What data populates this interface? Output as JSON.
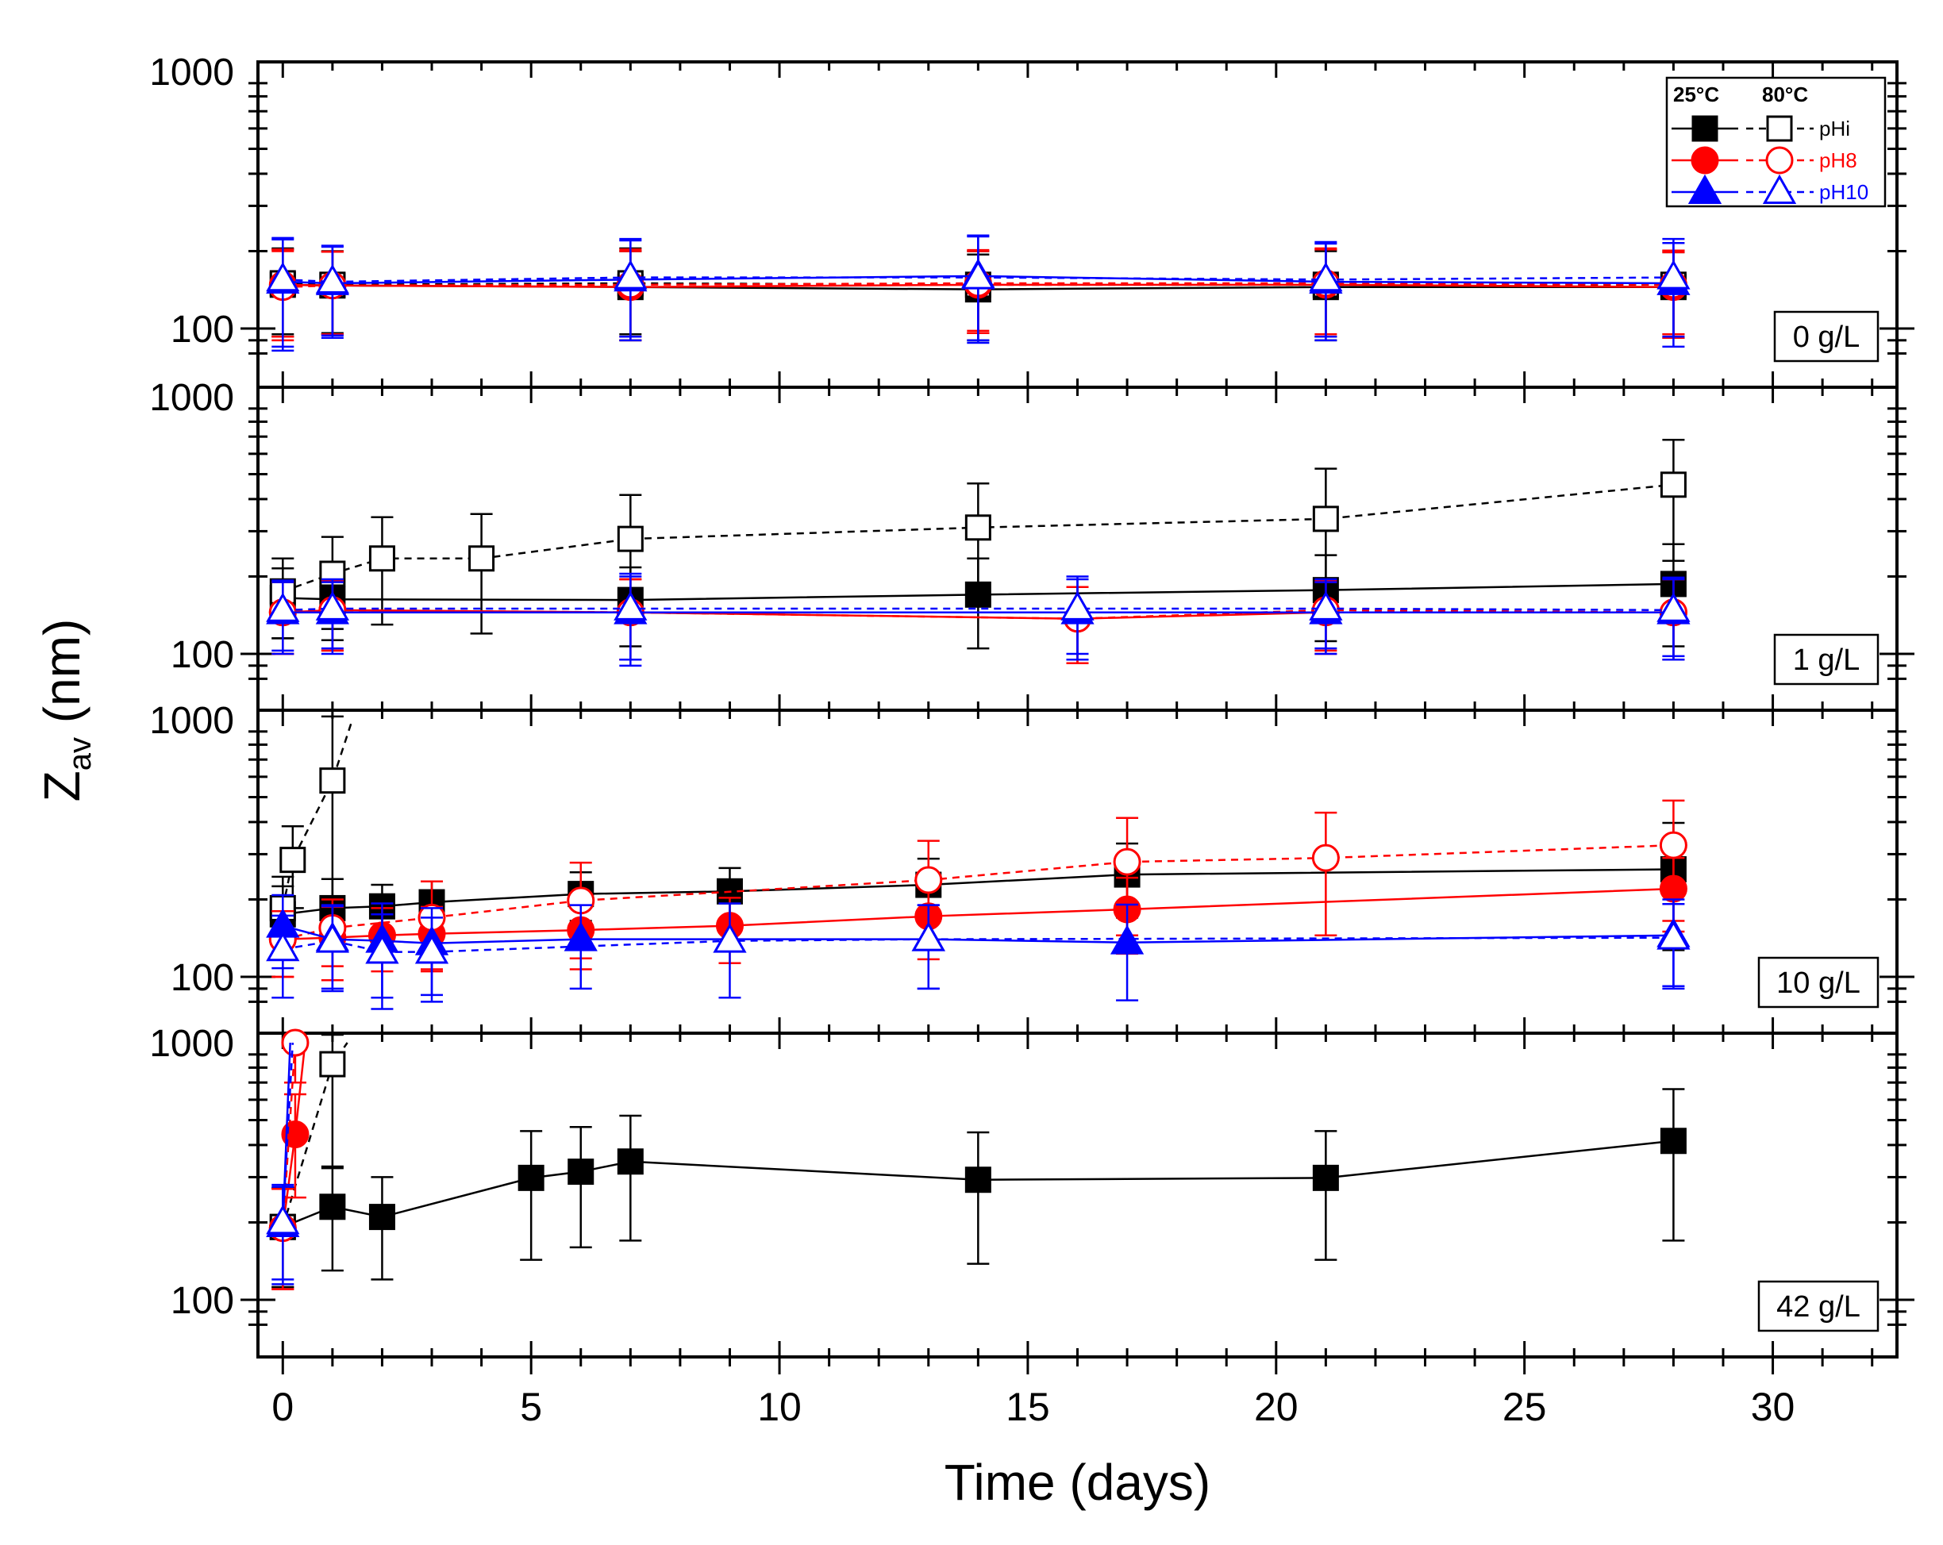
{
  "chart_data": {
    "type": "scatter",
    "xlabel": "Time (days)",
    "ylabel_main": "Z",
    "ylabel_sub": "av",
    "ylabel_unit": " (nm)",
    "x_ticks": [
      "0",
      "5",
      "10",
      "15",
      "20",
      "25",
      "30"
    ],
    "xlim": [
      -0.5,
      32.5
    ],
    "y_scale": "log",
    "ylim": [
      75,
      1000
    ],
    "y_ticks": [
      "100",
      "1000"
    ],
    "legend": {
      "placement": "top-right",
      "header_25": "25°C",
      "header_80": "80°C",
      "entries": [
        {
          "label": "pHi",
          "color": "#000000",
          "marker": "square"
        },
        {
          "label": "pH8",
          "color": "#ff0000",
          "marker": "circle"
        },
        {
          "label": "pH10",
          "color": "#0000ff",
          "marker": "triangle"
        }
      ]
    },
    "colors": {
      "pHi": "#000000",
      "pH8": "#ff0000",
      "pH10": "#0000ff"
    },
    "panels": [
      {
        "label": "0 g/L",
        "series": [
          {
            "key": "pHi",
            "temp": "25",
            "x": [
              0,
              1,
              7,
              14,
              21,
              28
            ],
            "y": [
              148,
              147,
              145,
              142,
              145,
              145
            ],
            "err": [
              55,
              52,
              55,
              52,
              55,
              53
            ]
          },
          {
            "key": "pHi",
            "temp": "80",
            "x": [
              0,
              1,
              7,
              14,
              21,
              28
            ],
            "y": [
              150,
              148,
              150,
              148,
              148,
              148
            ],
            "err": [
              55,
              52,
              55,
              52,
              55,
              53
            ]
          },
          {
            "key": "pH8",
            "temp": "25",
            "x": [
              0,
              1,
              7,
              14,
              21,
              28
            ],
            "y": [
              148,
              147,
              145,
              148,
              148,
              145
            ],
            "err": [
              55,
              52,
              55,
              52,
              55,
              53
            ]
          },
          {
            "key": "pH8",
            "temp": "80",
            "x": [
              0,
              1,
              7,
              14,
              21,
              28
            ],
            "y": [
              145,
              147,
              148,
              150,
              150,
              148
            ],
            "err": [
              55,
              52,
              55,
              52,
              55,
              53
            ]
          },
          {
            "key": "pH10",
            "temp": "25",
            "x": [
              0,
              1,
              7,
              14,
              21,
              28
            ],
            "y": [
              152,
              150,
              155,
              160,
              152,
              150
            ],
            "err": [
              70,
              58,
              65,
              70,
              62,
              65
            ]
          },
          {
            "key": "pH10",
            "temp": "80",
            "x": [
              0,
              1,
              7,
              14,
              21,
              28
            ],
            "y": [
              155,
              152,
              158,
              158,
              155,
              158
            ],
            "err": [
              70,
              58,
              65,
              70,
              62,
              65
            ]
          }
        ]
      },
      {
        "label": "1 g/L",
        "series": [
          {
            "key": "pHi",
            "temp": "25",
            "x": [
              0,
              1,
              7,
              14,
              21,
              28
            ],
            "y": [
              165,
              163,
              162,
              170,
              177,
              187
            ],
            "err": [
              50,
              50,
              55,
              65,
              65,
              80
            ]
          },
          {
            "key": "pHi",
            "temp": "80",
            "x": [
              0,
              1,
              2,
              4,
              7,
              14,
              21,
              28
            ],
            "y": [
              175,
              205,
              235,
              235,
              280,
              310,
              335,
              455
            ],
            "err": [
              60,
              80,
              105,
              115,
              135,
              150,
              190,
              225
            ]
          },
          {
            "key": "pH8",
            "temp": "25",
            "x": [
              0,
              1,
              7,
              16,
              21,
              28
            ],
            "y": [
              145,
              148,
              145,
              137,
              145,
              145
            ],
            "err": [
              45,
              45,
              50,
              45,
              45,
              50
            ]
          },
          {
            "key": "pH8",
            "temp": "80",
            "x": [
              0,
              1,
              7,
              16,
              21,
              28
            ],
            "y": [
              145,
              148,
              145,
              137,
              148,
              145
            ],
            "err": [
              45,
              45,
              50,
              45,
              45,
              50
            ]
          },
          {
            "key": "pH10",
            "temp": "25",
            "x": [
              0,
              1,
              7,
              16,
              21,
              28
            ],
            "y": [
              145,
              145,
              145,
              145,
              145,
              145
            ],
            "err": [
              45,
              45,
              55,
              50,
              45,
              50
            ]
          },
          {
            "key": "pH10",
            "temp": "80",
            "x": [
              0,
              1,
              7,
              16,
              21,
              28
            ],
            "y": [
              148,
              150,
              150,
              150,
              150,
              148
            ],
            "err": [
              45,
              45,
              55,
              50,
              45,
              50
            ]
          }
        ]
      },
      {
        "label": "10 g/L",
        "series": [
          {
            "key": "pHi",
            "temp": "25",
            "x": [
              0,
              1,
              2,
              3,
              6,
              9,
              13,
              17,
              28
            ],
            "y": [
              175,
              185,
              188,
              195,
              210,
              215,
              228,
              250,
              262
            ],
            "err": [
              50,
              55,
              40,
              40,
              45,
              50,
              60,
              80,
              135
            ]
          },
          {
            "key": "pHi",
            "temp": "80",
            "x": [
              0,
              0.2,
              1,
              1.4
            ],
            "y": [
              185,
              285,
              580,
              1000
            ],
            "err": [
              60,
              100,
              450,
              0
            ]
          },
          {
            "key": "pH8",
            "temp": "25",
            "x": [
              0,
              1,
              2,
              3,
              6,
              9,
              13,
              17,
              28
            ],
            "y": [
              140,
              142,
              145,
              147,
              152,
              158,
              172,
              183,
              220
            ],
            "err": [
              40,
              45,
              40,
              40,
              45,
              45,
              55,
              60,
              70
            ]
          },
          {
            "key": "pH8",
            "temp": "80",
            "x": [
              0,
              1,
              3,
              6,
              13,
              17,
              21,
              28
            ],
            "y": [
              140,
              155,
              170,
              198,
              238,
              280,
              290,
              325
            ],
            "err": [
              40,
              45,
              65,
              80,
              100,
              135,
              145,
              160
            ]
          },
          {
            "key": "pH10",
            "temp": "25",
            "x": [
              0,
              1,
              2,
              3,
              6,
              13,
              17,
              28
            ],
            "y": [
              158,
              140,
              138,
              135,
              140,
              140,
              136,
              145
            ],
            "err": [
              50,
              50,
              55,
              50,
              50,
              50,
              55,
              55
            ]
          },
          {
            "key": "pH10",
            "temp": "80",
            "x": [
              0,
              1,
              2,
              3,
              9,
              13,
              28
            ],
            "y": [
              128,
              138,
              125,
              125,
              138,
              140,
              142
            ],
            "err": [
              45,
              50,
              50,
              45,
              55,
              50,
              50
            ]
          }
        ]
      },
      {
        "label": "42 g/L",
        "series": [
          {
            "key": "pHi",
            "temp": "25",
            "x": [
              0,
              1,
              2,
              5,
              6,
              7,
              14,
              21,
              28
            ],
            "y": [
              192,
              230,
              210,
              298,
              315,
              345,
              293,
              298,
              415
            ],
            "err": [
              80,
              100,
              90,
              155,
              155,
              175,
              155,
              155,
              245
            ]
          },
          {
            "key": "pHi",
            "temp": "80",
            "x": [
              0,
              1,
              1.3
            ],
            "y": [
              192,
              825,
              1000
            ],
            "err": [
              80,
              500,
              0
            ]
          },
          {
            "key": "pH8",
            "temp": "25",
            "x": [
              0,
              0.25,
              0.45
            ],
            "y": [
              190,
              440,
              1000
            ],
            "err": [
              80,
              190,
              0
            ]
          },
          {
            "key": "pH8",
            "temp": "80",
            "x": [
              0,
              0.25,
              0.3
            ],
            "y": [
              190,
              1000,
              1000
            ],
            "err": [
              80,
              300,
              0
            ]
          },
          {
            "key": "pH10",
            "temp": "25",
            "x": [
              0,
              0.15
            ],
            "y": [
              195,
              1000
            ],
            "err": [
              80,
              0
            ]
          },
          {
            "key": "pH10",
            "temp": "80",
            "x": [
              0,
              0.2
            ],
            "y": [
              200,
              1000
            ],
            "err": [
              80,
              0
            ]
          }
        ]
      }
    ]
  }
}
